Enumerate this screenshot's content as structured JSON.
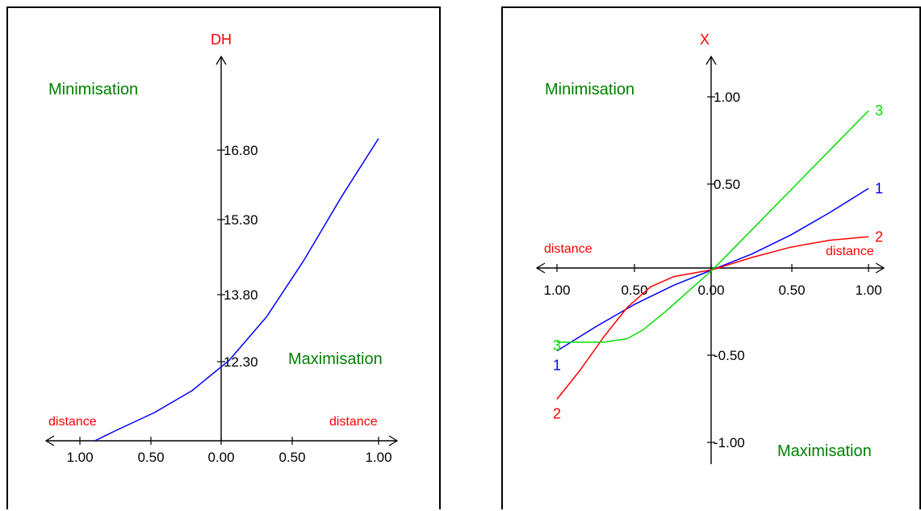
{
  "colors": {
    "axis": "#000000",
    "axis_label": "#ff0000",
    "region_label": "#008000",
    "series1": "#0000ff",
    "series2": "#ff0000",
    "series3": "#00dd00"
  },
  "chart_data": [
    {
      "type": "line",
      "ylabel": "DH",
      "region_labels": {
        "top": "Minimisation",
        "bottom": "Maximisation"
      },
      "x_side_labels": {
        "left": "distance",
        "right": "distance"
      },
      "xticks": [
        "1.00",
        "0.50",
        "0.00",
        "0.50",
        "1.00"
      ],
      "yticks": [
        "12.30",
        "13.80",
        "15.30",
        "16.80"
      ],
      "xlim": [
        -1,
        1
      ],
      "ylim": [
        10.6,
        17.8
      ],
      "series": [
        {
          "color": "#0000ff",
          "x": [
            -0.9,
            -0.75,
            -0.5,
            -0.25,
            0,
            0.25,
            0.5,
            0.75,
            1.0
          ],
          "y": [
            10.6,
            10.85,
            11.25,
            11.75,
            12.45,
            13.45,
            14.75,
            16.2,
            17.55
          ]
        }
      ]
    },
    {
      "type": "line",
      "ylabel": "X",
      "region_labels": {
        "top": "Minimisation",
        "bottom": "Maximisation"
      },
      "x_side_labels": {
        "left": "distance",
        "right": "distance"
      },
      "xticks": [
        "1.00",
        "0.50",
        "0.00",
        "0.50",
        "1.00"
      ],
      "yticks": [
        "1.00",
        "0.50",
        "-0.50",
        "-1.00"
      ],
      "xlim": [
        -1,
        1
      ],
      "ylim": [
        -1,
        1
      ],
      "series": [
        {
          "name": "1",
          "color": "#0000ff",
          "x": [
            -1,
            -0.75,
            -0.5,
            -0.25,
            0,
            0.25,
            0.5,
            0.75,
            1
          ],
          "y": [
            -0.47,
            -0.33,
            -0.2,
            -0.09,
            0,
            0.09,
            0.2,
            0.33,
            0.47
          ]
        },
        {
          "name": "2",
          "color": "#ff0000",
          "x": [
            -1,
            -0.85,
            -0.7,
            -0.55,
            -0.4,
            -0.25,
            0,
            0.25,
            0.5,
            0.75,
            1
          ],
          "y": [
            -0.75,
            -0.58,
            -0.39,
            -0.22,
            -0.1,
            -0.04,
            0,
            0.07,
            0.13,
            0.17,
            0.19
          ]
        },
        {
          "name": "3",
          "color": "#00dd00",
          "x": [
            -1,
            -0.85,
            -0.7,
            -0.55,
            -0.45,
            -0.3,
            -0.15,
            0,
            0.25,
            0.5,
            0.75,
            1
          ],
          "y": [
            -0.42,
            -0.42,
            -0.42,
            -0.4,
            -0.35,
            -0.24,
            -0.12,
            0,
            0.23,
            0.46,
            0.69,
            0.92
          ]
        }
      ]
    }
  ]
}
